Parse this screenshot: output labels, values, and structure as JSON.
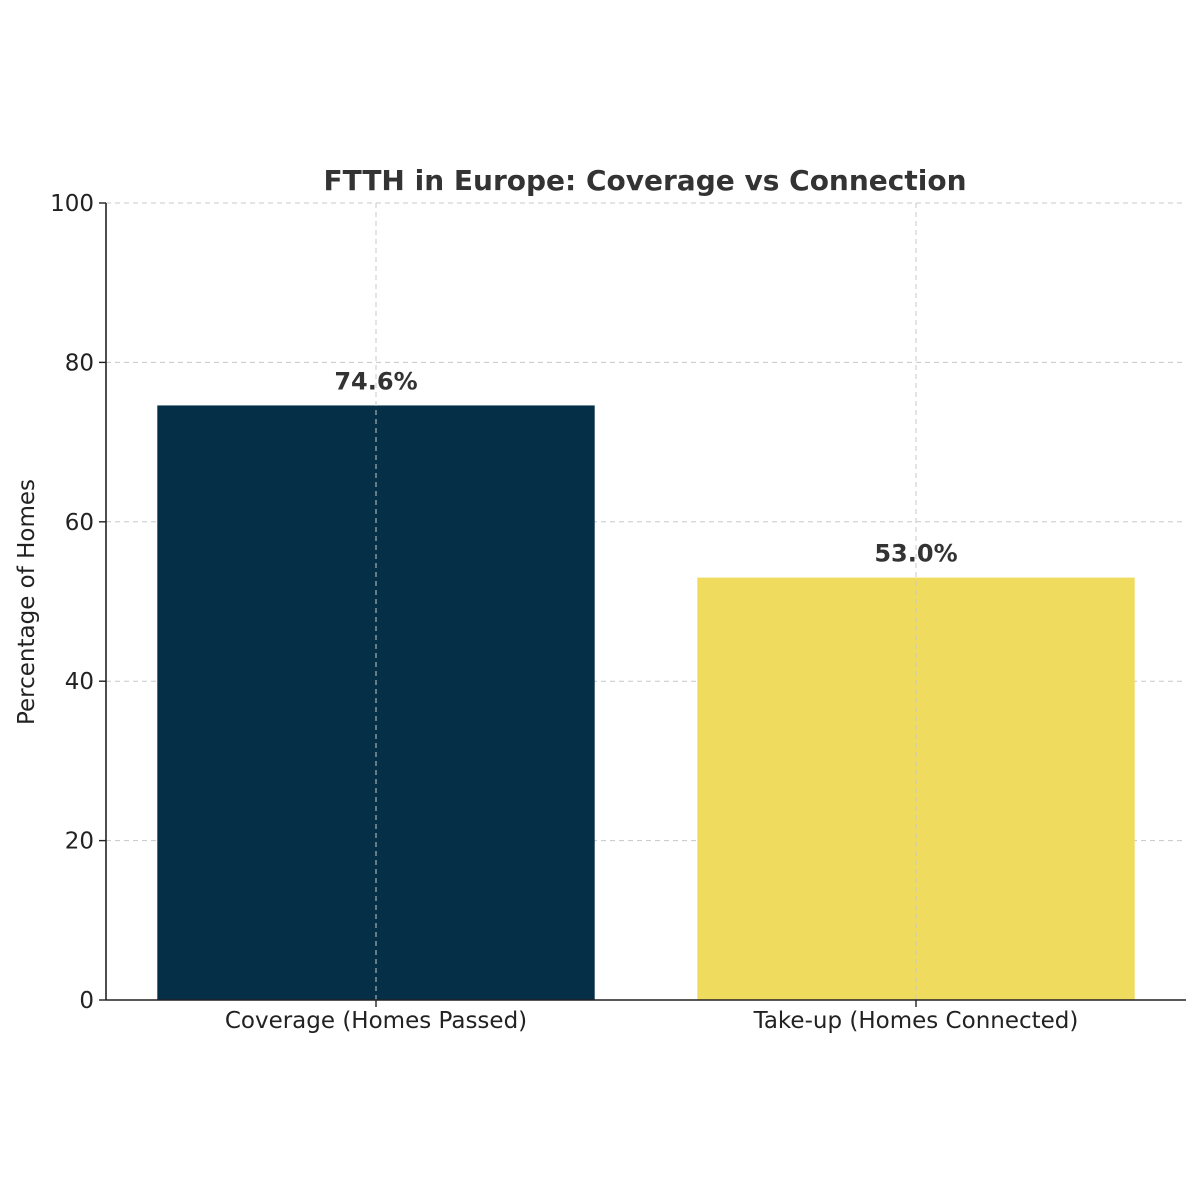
{
  "chart_data": {
    "type": "bar",
    "title": "FTTH in Europe: Coverage vs Connection",
    "xlabel": "",
    "ylabel": "Percentage of Homes",
    "categories": [
      "Coverage (Homes Passed)",
      "Take-up (Homes Connected)"
    ],
    "values": [
      74.6,
      53.0
    ],
    "value_labels": [
      "74.6%",
      "53.0%"
    ],
    "colors": [
      "#042f46",
      "#efdc5f"
    ],
    "ylim": [
      0,
      100
    ],
    "yticks": [
      0,
      20,
      40,
      60,
      80,
      100
    ],
    "grid": true,
    "legend": "none"
  }
}
